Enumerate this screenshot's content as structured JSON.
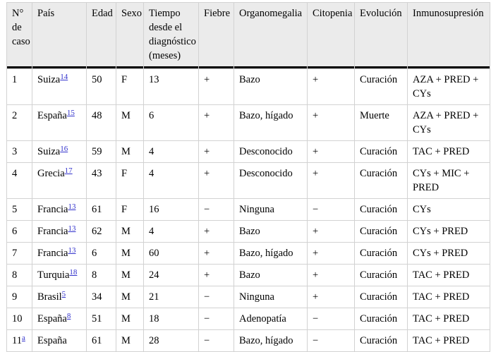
{
  "colors": {
    "header_bg": "#ebebeb",
    "grid": "#d2d2d2",
    "header_rule": "#000000",
    "link": "#3333cc",
    "text": "#000000"
  },
  "table": {
    "columns": [
      "N° de caso",
      "País",
      "Edad",
      "Sexo",
      "Tiempo desde el diagnóstico (meses)",
      "Fiebre",
      "Organomegalia",
      "Citopenia",
      "Evolución",
      "Inmunosupresión"
    ],
    "rows": [
      {
        "case": "1",
        "case_ref": "",
        "country": "Suiza",
        "country_ref": "14",
        "age": "50",
        "sex": "F",
        "months": "13",
        "fever": "+",
        "organomegaly": "Bazo",
        "cytopenia": "+",
        "outcome": "Curación",
        "immunosuppression": "AZA + PRED + CYs"
      },
      {
        "case": "2",
        "case_ref": "",
        "country": "España",
        "country_ref": "15",
        "age": "48",
        "sex": "M",
        "months": "6",
        "fever": "+",
        "organomegaly": "Bazo, hígado",
        "cytopenia": "+",
        "outcome": "Muerte",
        "immunosuppression": "AZA + PRED + CYs"
      },
      {
        "case": "3",
        "case_ref": "",
        "country": "Suiza",
        "country_ref": "16",
        "age": "59",
        "sex": "M",
        "months": "4",
        "fever": "+",
        "organomegaly": "Desconocido",
        "cytopenia": "+",
        "outcome": "Curación",
        "immunosuppression": "TAC + PRED"
      },
      {
        "case": "4",
        "case_ref": "",
        "country": "Grecia",
        "country_ref": "17",
        "age": "43",
        "sex": "F",
        "months": "4",
        "fever": "+",
        "organomegaly": "Desconocido",
        "cytopenia": "+",
        "outcome": "Curación",
        "immunosuppression": "CYs + MIC + PRED"
      },
      {
        "case": "5",
        "case_ref": "",
        "country": "Francia",
        "country_ref": "13",
        "age": "61",
        "sex": "F",
        "months": "16",
        "fever": "−",
        "organomegaly": "Ninguna",
        "cytopenia": "−",
        "outcome": "Curación",
        "immunosuppression": "CYs"
      },
      {
        "case": "6",
        "case_ref": "",
        "country": "Francia",
        "country_ref": "13",
        "age": "62",
        "sex": "M",
        "months": "4",
        "fever": "+",
        "organomegaly": "Bazo",
        "cytopenia": "+",
        "outcome": "Curación",
        "immunosuppression": "CYs + PRED"
      },
      {
        "case": "7",
        "case_ref": "",
        "country": "Francia",
        "country_ref": "13",
        "age": "6",
        "sex": "M",
        "months": "60",
        "fever": "+",
        "organomegaly": "Bazo, hígado",
        "cytopenia": "+",
        "outcome": "Curación",
        "immunosuppression": "CYs + PRED"
      },
      {
        "case": "8",
        "case_ref": "",
        "country": "Turquia",
        "country_ref": "18",
        "age": "8",
        "sex": "M",
        "months": "24",
        "fever": "+",
        "organomegaly": "Bazo",
        "cytopenia": "+",
        "outcome": "Curación",
        "immunosuppression": "TAC + PRED"
      },
      {
        "case": "9",
        "case_ref": "",
        "country": "Brasil",
        "country_ref": "5",
        "age": "34",
        "sex": "M",
        "months": "21",
        "fever": "−",
        "organomegaly": "Ninguna",
        "cytopenia": "+",
        "outcome": "Curación",
        "immunosuppression": "TAC + PRED"
      },
      {
        "case": "10",
        "case_ref": "",
        "country": "España",
        "country_ref": "8",
        "age": "51",
        "sex": "M",
        "months": "18",
        "fever": "−",
        "organomegaly": "Adenopatía",
        "cytopenia": "−",
        "outcome": "Curación",
        "immunosuppression": "TAC + PRED"
      },
      {
        "case": "11",
        "case_ref": "a",
        "country": "España",
        "country_ref": "",
        "age": "61",
        "sex": "M",
        "months": "28",
        "fever": "−",
        "organomegaly": "Bazo, hígado",
        "cytopenia": "−",
        "outcome": "Curación",
        "immunosuppression": "TAC + PRED"
      }
    ]
  }
}
